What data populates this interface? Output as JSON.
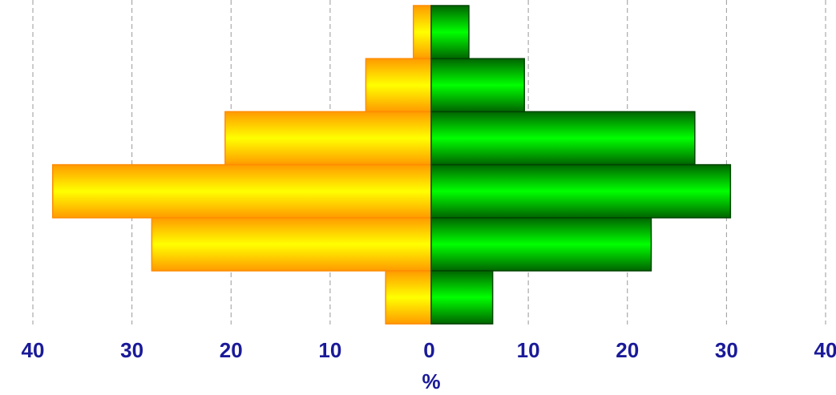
{
  "chart_data": {
    "type": "bar",
    "orientation": "horizontal",
    "layout": "population-pyramid",
    "xlabel": "%",
    "xlim": [
      -40,
      40
    ],
    "x_ticks": [
      -40,
      -30,
      -20,
      -10,
      0,
      10,
      20,
      30,
      40
    ],
    "x_tick_labels": [
      "40",
      "30",
      "20",
      "10",
      "0",
      "10",
      "20",
      "30",
      "40"
    ],
    "grid": "vertical dashed",
    "legend": "none",
    "rows": 6,
    "series": [
      {
        "side": "left",
        "color": "#FFD700",
        "edge_color": "#FF8C00",
        "values": [
          1.8,
          6.6,
          20.8,
          38.2,
          28.2,
          4.6
        ]
      },
      {
        "side": "right",
        "color": "#00E000",
        "edge_color": "#004400",
        "values": [
          3.8,
          9.4,
          26.6,
          30.2,
          22.2,
          6.2
        ]
      }
    ],
    "colors": {
      "tick_label": "#1A1A99",
      "axis_title": "#1A1A99",
      "grid": "#999999"
    }
  }
}
